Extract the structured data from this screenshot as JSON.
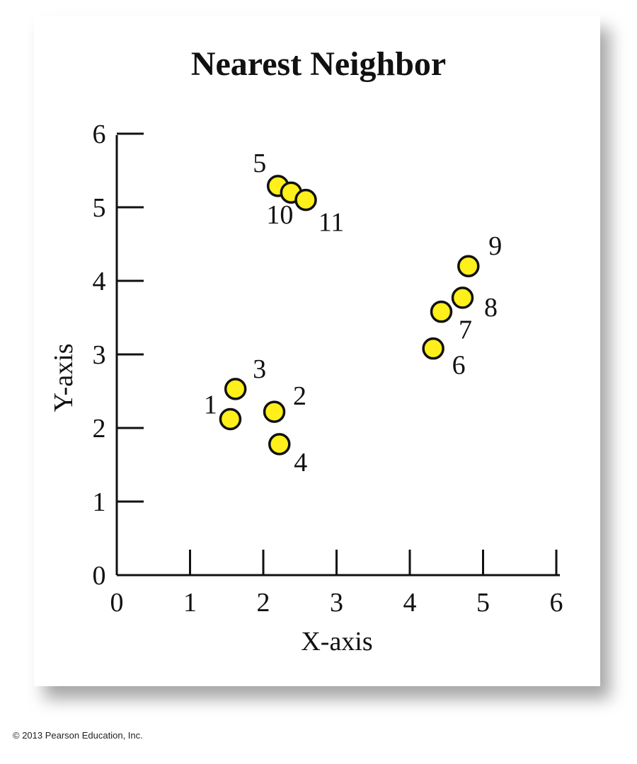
{
  "chart_data": {
    "type": "scatter",
    "title": "Nearest Neighbor",
    "xlabel": "X-axis",
    "ylabel": "Y-axis",
    "xlim": [
      0,
      6
    ],
    "ylim": [
      0,
      6
    ],
    "x_ticks": [
      "0",
      "1",
      "2",
      "3",
      "4",
      "5",
      "6"
    ],
    "y_ticks": [
      "0",
      "1",
      "2",
      "3",
      "4",
      "5",
      "6"
    ],
    "grid": false,
    "point_color": "#ffef1a",
    "points": [
      {
        "label": "1",
        "x": 1.55,
        "y": 2.12
      },
      {
        "label": "2",
        "x": 2.15,
        "y": 2.22
      },
      {
        "label": "3",
        "x": 1.62,
        "y": 2.53
      },
      {
        "label": "4",
        "x": 2.22,
        "y": 1.78
      },
      {
        "label": "5",
        "x": 2.2,
        "y": 5.29
      },
      {
        "label": "6",
        "x": 4.32,
        "y": 3.08
      },
      {
        "label": "7",
        "x": 4.43,
        "y": 3.58
      },
      {
        "label": "8",
        "x": 4.72,
        "y": 3.77
      },
      {
        "label": "9",
        "x": 4.8,
        "y": 4.2
      },
      {
        "label": "10",
        "x": 2.38,
        "y": 5.2
      },
      {
        "label": "11",
        "x": 2.58,
        "y": 5.1
      }
    ]
  },
  "footer": {
    "copyright": "© 2013 Pearson Education, Inc."
  }
}
